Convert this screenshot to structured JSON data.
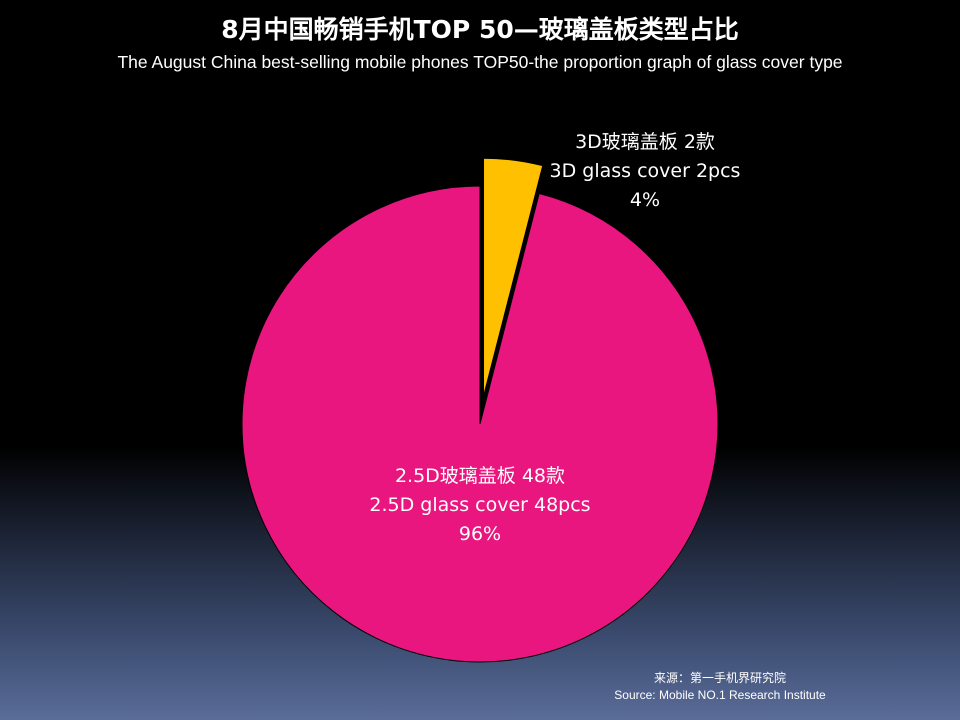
{
  "title": {
    "zh": "8月中国畅销手机TOP 50—玻璃盖板类型占比",
    "en": "The August China best-selling mobile phones TOP50-the proportion graph of glass cover type"
  },
  "chart_data": {
    "type": "pie",
    "title": "8月中国畅销手机TOP 50—玻璃盖板类型占比",
    "subtitle": "The August China best-selling mobile phones TOP50-the proportion graph of glass cover type",
    "slices": [
      {
        "label_zh": "3D玻璃盖板 2款",
        "label_en": "3D glass cover 2pcs",
        "count": 2,
        "percent_label": "4%",
        "value": 4,
        "color": "#FFC000",
        "exploded": true
      },
      {
        "label_zh": "2.5D玻璃盖板 48款",
        "label_en": "2.5D glass cover 48pcs",
        "count": 48,
        "percent_label": "96%",
        "value": 96,
        "color": "#E8167E",
        "exploded": false
      }
    ],
    "start_angle": "12 o'clock",
    "direction": "clockwise"
  },
  "source": {
    "zh": "来源：第一手机界研究院",
    "en": "Source: Mobile NO.1 Research Institute"
  }
}
